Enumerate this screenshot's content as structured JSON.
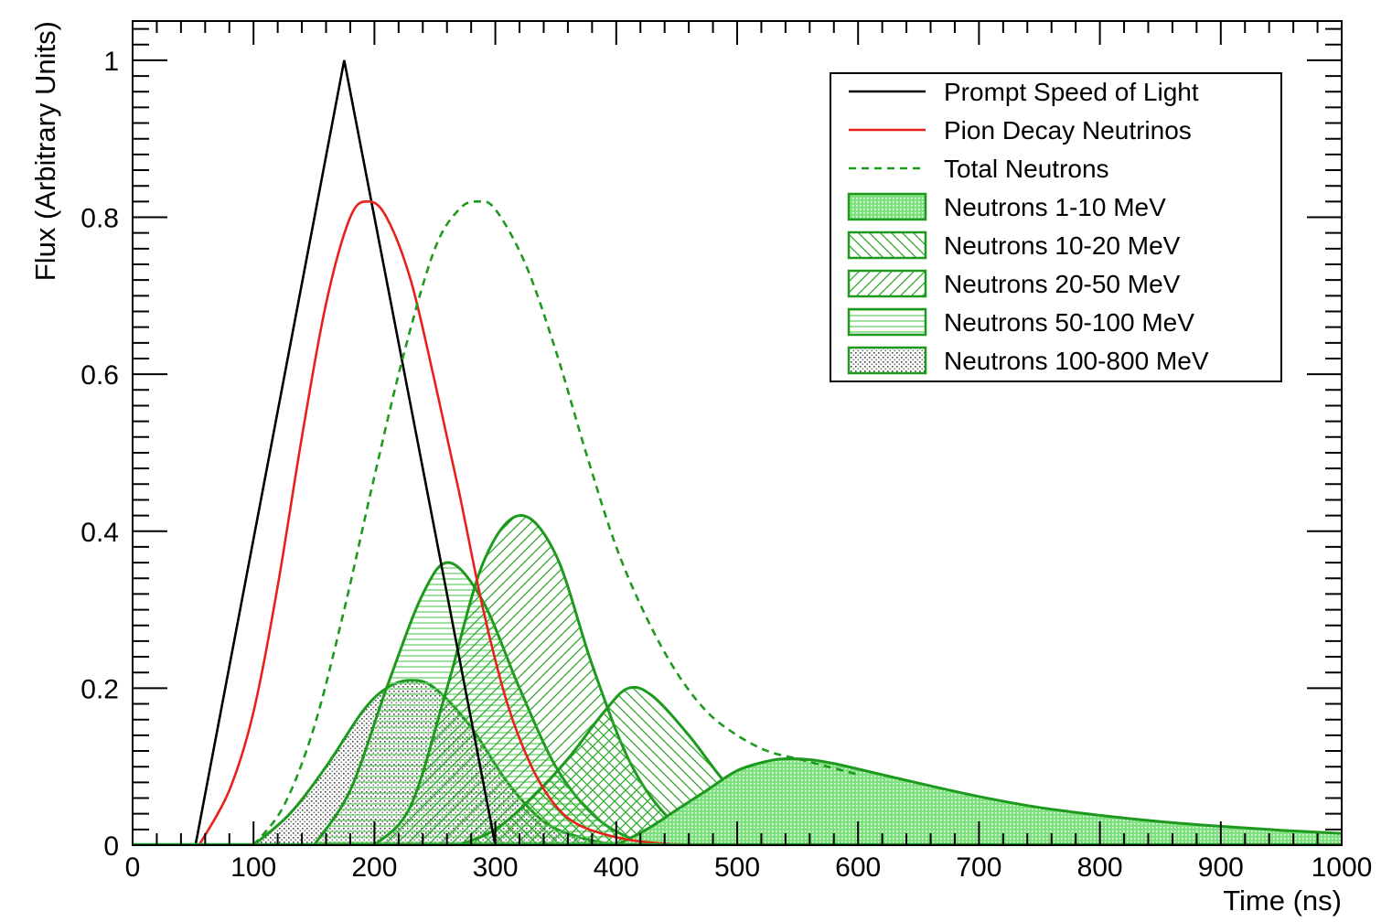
{
  "chart_data": {
    "type": "line",
    "title": "",
    "xlabel": "Time (ns)",
    "ylabel": "Flux (Arbitrary Units)",
    "xlim": [
      0,
      1000
    ],
    "ylim": [
      0,
      1.05
    ],
    "xticks": [
      0,
      100,
      200,
      300,
      400,
      500,
      600,
      700,
      800,
      900,
      1000
    ],
    "xtick_labels": [
      "0",
      "100",
      "200",
      "300",
      "400",
      "500",
      "600",
      "700",
      "800",
      "900",
      "1000"
    ],
    "yticks": [
      0,
      0.2,
      0.4,
      0.6,
      0.8,
      1
    ],
    "ytick_labels": [
      "0",
      "0.2",
      "0.4",
      "0.6",
      "0.8",
      "1"
    ],
    "grid": false,
    "legend_position": "top-right",
    "series": [
      {
        "name": "Prompt Speed of Light",
        "style": "line",
        "color": "#000000",
        "x": [
          52,
          175,
          300
        ],
        "y": [
          0,
          1.0,
          0
        ]
      },
      {
        "name": "Pion Decay Neutrinos",
        "style": "line",
        "color": "#e8201c",
        "x": [
          55,
          80,
          100,
          120,
          140,
          160,
          180,
          195,
          210,
          230,
          250,
          270,
          290,
          310,
          330,
          350,
          370,
          400,
          430,
          470
        ],
        "y": [
          0,
          0.07,
          0.17,
          0.33,
          0.52,
          0.69,
          0.8,
          0.82,
          0.8,
          0.72,
          0.59,
          0.45,
          0.3,
          0.18,
          0.1,
          0.05,
          0.025,
          0.01,
          0.003,
          0
        ]
      },
      {
        "name": "Total Neutrons",
        "style": "dashed",
        "color": "#1d9a1d",
        "x": [
          100,
          125,
          150,
          175,
          200,
          225,
          250,
          270,
          285,
          300,
          325,
          350,
          375,
          400,
          425,
          450,
          475,
          500,
          525,
          550,
          575,
          600
        ],
        "y": [
          0,
          0.05,
          0.15,
          0.3,
          0.47,
          0.63,
          0.76,
          0.81,
          0.82,
          0.81,
          0.74,
          0.63,
          0.5,
          0.38,
          0.29,
          0.22,
          0.17,
          0.14,
          0.12,
          0.11,
          0.1,
          0.09
        ]
      },
      {
        "name": "Neutrons 1-10 MeV",
        "style": "fill-dots",
        "color": "#1d9a1d",
        "x": [
          400,
          425,
          450,
          475,
          500,
          525,
          540,
          560,
          580,
          600,
          650,
          700,
          750,
          800,
          850,
          900,
          950,
          1000
        ],
        "y": [
          0,
          0.02,
          0.045,
          0.07,
          0.095,
          0.107,
          0.11,
          0.109,
          0.104,
          0.097,
          0.079,
          0.062,
          0.048,
          0.038,
          0.03,
          0.024,
          0.019,
          0.015
        ]
      },
      {
        "name": "Neutrons 10-20 MeV",
        "style": "fill-hatch-back",
        "color": "#1d9a1d",
        "x": [
          270,
          300,
          330,
          360,
          390,
          410,
          430,
          460,
          490,
          520,
          550,
          580
        ],
        "y": [
          0,
          0.02,
          0.06,
          0.11,
          0.17,
          0.2,
          0.19,
          0.14,
          0.08,
          0.035,
          0.01,
          0
        ]
      },
      {
        "name": "Neutrons 20-50 MeV",
        "style": "fill-hatch-fwd",
        "color": "#1d9a1d",
        "x": [
          200,
          230,
          260,
          290,
          320,
          350,
          380,
          410,
          440,
          470,
          500
        ],
        "y": [
          0,
          0.05,
          0.2,
          0.36,
          0.42,
          0.37,
          0.23,
          0.11,
          0.04,
          0.01,
          0
        ]
      },
      {
        "name": "Neutrons 50-100 MeV",
        "style": "fill-hatch-horiz",
        "color": "#1d9a1d",
        "x": [
          150,
          180,
          210,
          240,
          262,
          290,
          320,
          350,
          380,
          410,
          440
        ],
        "y": [
          0,
          0.07,
          0.2,
          0.32,
          0.36,
          0.31,
          0.2,
          0.1,
          0.04,
          0.01,
          0
        ]
      },
      {
        "name": "Neutrons 100-800 MeV",
        "style": "fill-stipple",
        "color": "#1d9a1d",
        "x": [
          100,
          130,
          160,
          190,
          210,
          230,
          250,
          280,
          310,
          340,
          370,
          400
        ],
        "y": [
          0,
          0.04,
          0.1,
          0.17,
          0.2,
          0.21,
          0.2,
          0.15,
          0.08,
          0.03,
          0.01,
          0
        ]
      }
    ]
  }
}
